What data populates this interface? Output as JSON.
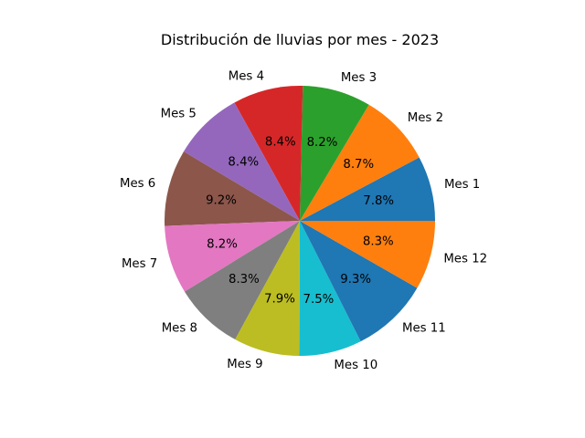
{
  "chart_data": {
    "type": "pie",
    "title": "Distribución de lluvias por mes - 2023",
    "categories": [
      "Mes 1",
      "Mes 2",
      "Mes 3",
      "Mes 4",
      "Mes 5",
      "Mes 6",
      "Mes 7",
      "Mes 8",
      "Mes 9",
      "Mes 10",
      "Mes 11",
      "Mes 12"
    ],
    "values": [
      7.8,
      8.7,
      8.2,
      8.4,
      8.4,
      9.2,
      8.2,
      8.3,
      7.9,
      7.5,
      9.3,
      8.3
    ],
    "percent_labels": [
      "7.8%",
      "8.7%",
      "8.2%",
      "8.4%",
      "8.4%",
      "9.2%",
      "8.2%",
      "8.3%",
      "7.9%",
      "7.5%",
      "9.3%",
      "8.3%"
    ],
    "colors": [
      "#1f77b4",
      "#ff7f0e",
      "#2ca02c",
      "#d62728",
      "#9467bd",
      "#8c564b",
      "#e377c2",
      "#7f7f7f",
      "#bcbd22",
      "#17becf",
      "#1f77b4",
      "#ff7f0e"
    ],
    "start_angle_deg": 0,
    "direction": "counterclockwise",
    "legend": "none"
  }
}
